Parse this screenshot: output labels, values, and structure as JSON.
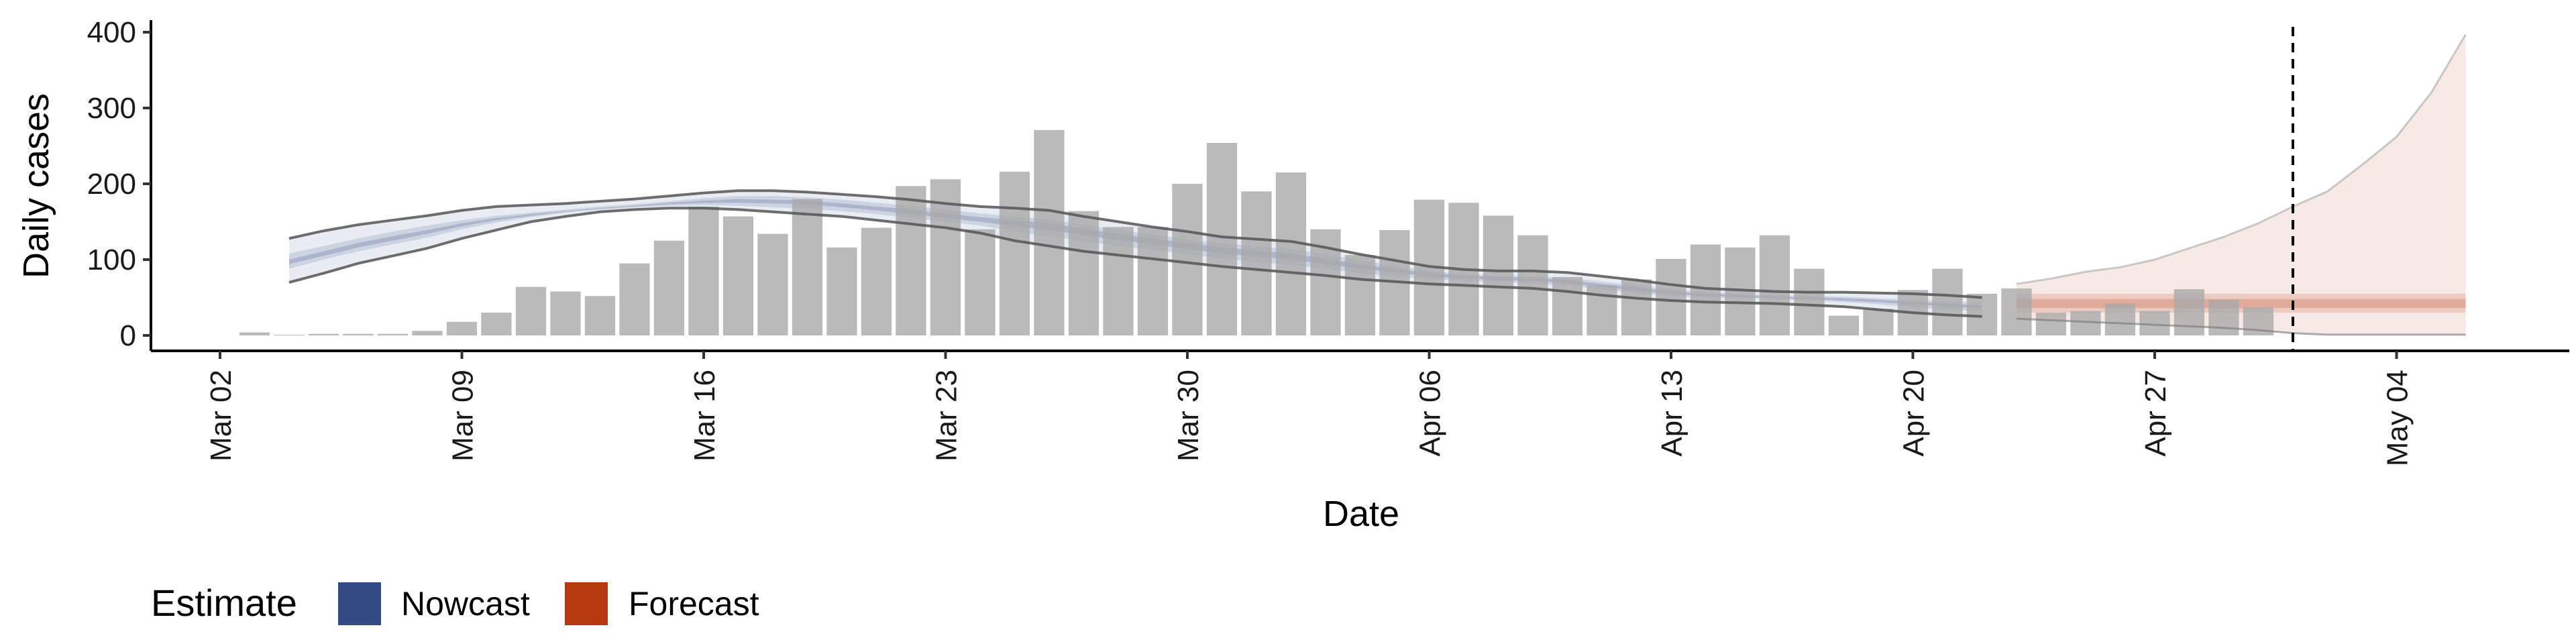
{
  "chart_data": {
    "type": "bar",
    "xlabel": "Date",
    "ylabel": "Daily cases",
    "ylim": [
      0,
      400
    ],
    "y_ticks": [
      "0",
      "100",
      "200",
      "300",
      "400"
    ],
    "x_ticks": [
      {
        "date": "2020-03-02",
        "label": "Mar 02"
      },
      {
        "date": "2020-03-09",
        "label": "Mar 09"
      },
      {
        "date": "2020-03-16",
        "label": "Mar 16"
      },
      {
        "date": "2020-03-23",
        "label": "Mar 23"
      },
      {
        "date": "2020-03-30",
        "label": "Mar 30"
      },
      {
        "date": "2020-04-06",
        "label": "Apr 06"
      },
      {
        "date": "2020-04-13",
        "label": "Apr 13"
      },
      {
        "date": "2020-04-20",
        "label": "Apr 20"
      },
      {
        "date": "2020-04-27",
        "label": "Apr 27"
      },
      {
        "date": "2020-05-04",
        "label": "May 04"
      }
    ],
    "xlim": [
      "2020-02-29",
      "2020-05-09"
    ],
    "vline_date": "2020-05-01",
    "observed": {
      "dates": [
        "2020-03-03",
        "2020-03-04",
        "2020-03-05",
        "2020-03-06",
        "2020-03-07",
        "2020-03-08",
        "2020-03-09",
        "2020-03-10",
        "2020-03-11",
        "2020-03-12",
        "2020-03-13",
        "2020-03-14",
        "2020-03-15",
        "2020-03-16",
        "2020-03-17",
        "2020-03-18",
        "2020-03-19",
        "2020-03-20",
        "2020-03-21",
        "2020-03-22",
        "2020-03-23",
        "2020-03-24",
        "2020-03-25",
        "2020-03-26",
        "2020-03-27",
        "2020-03-28",
        "2020-03-29",
        "2020-03-30",
        "2020-03-31",
        "2020-04-01",
        "2020-04-02",
        "2020-04-03",
        "2020-04-04",
        "2020-04-05",
        "2020-04-06",
        "2020-04-07",
        "2020-04-08",
        "2020-04-09",
        "2020-04-10",
        "2020-04-11",
        "2020-04-12",
        "2020-04-13",
        "2020-04-14",
        "2020-04-15",
        "2020-04-16",
        "2020-04-17",
        "2020-04-18",
        "2020-04-19",
        "2020-04-20",
        "2020-04-21",
        "2020-04-22",
        "2020-04-23",
        "2020-04-24",
        "2020-04-25",
        "2020-04-26",
        "2020-04-27",
        "2020-04-28",
        "2020-04-29",
        "2020-04-30",
        "2020-05-01"
      ],
      "values": [
        4,
        1,
        2,
        2,
        2,
        6,
        18,
        30,
        64,
        58,
        52,
        95,
        125,
        170,
        157,
        134,
        180,
        116,
        142,
        197,
        206,
        140,
        216,
        271,
        164,
        143,
        143,
        200,
        254,
        190,
        215,
        140,
        106,
        139,
        179,
        175,
        158,
        132,
        77,
        66,
        74,
        101,
        120,
        116,
        132,
        88,
        26,
        35,
        60,
        88,
        55,
        62,
        30,
        32,
        42,
        32,
        61,
        47,
        37,
        0
      ]
    },
    "series": [
      {
        "name": "Nowcast",
        "color": "#3b4e8a",
        "dates": [
          "2020-03-04",
          "2020-03-05",
          "2020-03-06",
          "2020-03-07",
          "2020-03-08",
          "2020-03-09",
          "2020-03-10",
          "2020-03-11",
          "2020-03-12",
          "2020-03-13",
          "2020-03-14",
          "2020-03-15",
          "2020-03-16",
          "2020-03-17",
          "2020-03-18",
          "2020-03-19",
          "2020-03-20",
          "2020-03-21",
          "2020-03-22",
          "2020-03-23",
          "2020-03-24",
          "2020-03-25",
          "2020-03-26",
          "2020-03-27",
          "2020-03-28",
          "2020-03-29",
          "2020-03-30",
          "2020-03-31",
          "2020-04-01",
          "2020-04-02",
          "2020-04-03",
          "2020-04-04",
          "2020-04-05",
          "2020-04-06",
          "2020-04-07",
          "2020-04-08",
          "2020-04-09",
          "2020-04-10",
          "2020-04-11",
          "2020-04-12",
          "2020-04-13",
          "2020-04-14",
          "2020-04-15",
          "2020-04-16",
          "2020-04-17",
          "2020-04-18",
          "2020-04-19",
          "2020-04-20",
          "2020-04-21",
          "2020-04-22"
        ],
        "outer_upper": [
          128,
          138,
          146,
          152,
          158,
          165,
          170,
          172,
          174,
          177,
          180,
          184,
          188,
          191,
          191,
          189,
          186,
          183,
          179,
          174,
          170,
          168,
          165,
          157,
          150,
          143,
          137,
          130,
          127,
          124,
          116,
          107,
          99,
          91,
          87,
          85,
          85,
          83,
          78,
          73,
          67,
          62,
          60,
          58,
          57,
          57,
          56,
          55,
          53,
          50
        ],
        "outer_lower": [
          70,
          82,
          95,
          105,
          115,
          128,
          139,
          150,
          157,
          163,
          166,
          168,
          168,
          166,
          163,
          160,
          157,
          152,
          147,
          142,
          135,
          125,
          118,
          111,
          106,
          101,
          96,
          91,
          87,
          83,
          79,
          74,
          71,
          68,
          66,
          64,
          62,
          58,
          53,
          49,
          46,
          44,
          43,
          42,
          40,
          38,
          34,
          30,
          27,
          25
        ],
        "mid_upper": [
          108,
          118,
          128,
          137,
          145,
          152,
          158,
          162,
          166,
          170,
          173,
          177,
          181,
          184,
          184,
          182,
          179,
          175,
          171,
          166,
          161,
          157,
          153,
          146,
          139,
          133,
          127,
          121,
          118,
          114,
          107,
          99,
          92,
          85,
          81,
          79,
          78,
          76,
          71,
          66,
          61,
          57,
          55,
          53,
          52,
          51,
          49,
          47,
          45,
          42
        ],
        "mid_lower": [
          88,
          100,
          111,
          120,
          129,
          140,
          149,
          156,
          162,
          166,
          169,
          171,
          172,
          171,
          169,
          167,
          164,
          160,
          155,
          150,
          145,
          137,
          131,
          124,
          118,
          113,
          107,
          101,
          97,
          93,
          88,
          82,
          78,
          74,
          72,
          70,
          69,
          66,
          61,
          56,
          52,
          50,
          49,
          48,
          46,
          44,
          41,
          37,
          34,
          32
        ],
        "inner_upper": [
          100,
          111,
          122,
          131,
          139,
          148,
          155,
          160,
          164,
          168,
          171,
          175,
          178,
          180,
          179,
          178,
          174,
          170,
          166,
          161,
          156,
          152,
          148,
          141,
          134,
          128,
          122,
          116,
          112,
          108,
          101,
          94,
          88,
          82,
          79,
          77,
          76,
          73,
          68,
          63,
          58,
          55,
          53,
          51,
          50,
          49,
          47,
          44,
          42,
          39
        ],
        "inner_lower": [
          94,
          105,
          116,
          125,
          134,
          144,
          152,
          158,
          163,
          167,
          170,
          173,
          175,
          175,
          174,
          173,
          169,
          165,
          160,
          155,
          150,
          144,
          139,
          132,
          126,
          120,
          114,
          108,
          104,
          100,
          94,
          88,
          83,
          78,
          75,
          73,
          72,
          69,
          64,
          59,
          55,
          52,
          51,
          49,
          48,
          46,
          44,
          41,
          38,
          36
        ]
      },
      {
        "name": "Forecast",
        "color": "#b5380e",
        "dates": [
          "2020-04-23",
          "2020-04-24",
          "2020-04-25",
          "2020-04-26",
          "2020-04-27",
          "2020-04-28",
          "2020-04-29",
          "2020-04-30",
          "2020-05-01",
          "2020-05-02",
          "2020-05-03",
          "2020-05-04",
          "2020-05-05",
          "2020-05-06"
        ],
        "outer_upper": [
          68,
          75,
          84,
          90,
          100,
          115,
          130,
          148,
          170,
          190,
          225,
          262,
          320,
          397
        ],
        "outer_lower": [
          22,
          20,
          18,
          16,
          14,
          12,
          10,
          7,
          3,
          1,
          1,
          1,
          1,
          1
        ],
        "mid_upper": [
          55,
          55,
          55,
          55,
          55,
          55,
          55,
          55,
          55,
          55,
          55,
          55,
          55,
          55
        ],
        "mid_lower": [
          30,
          30,
          30,
          30,
          30,
          30,
          30,
          30,
          30,
          30,
          30,
          30,
          30,
          30
        ],
        "inner_upper": [
          48,
          48,
          48,
          48,
          48,
          48,
          48,
          48,
          48,
          48,
          48,
          48,
          48,
          48
        ],
        "inner_lower": [
          36,
          36,
          36,
          36,
          36,
          36,
          36,
          36,
          36,
          36,
          36,
          36,
          36,
          36
        ]
      }
    ],
    "legend": {
      "title": "Estimate",
      "position": "bottom-left",
      "items": [
        {
          "label": "Nowcast",
          "color": "#344b86"
        },
        {
          "label": "Forecast",
          "color": "#b5380e"
        }
      ]
    },
    "grid": false
  }
}
